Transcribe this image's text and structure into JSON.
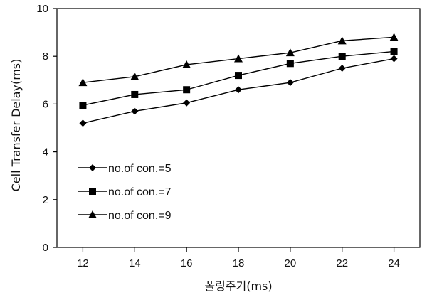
{
  "chart_data": {
    "type": "line",
    "title": "",
    "xlabel": "폴링주기(ms)",
    "ylabel": "Cell Transfer Delay(ms)",
    "x": [
      12,
      14,
      16,
      18,
      20,
      22,
      24
    ],
    "xlim": [
      11,
      25
    ],
    "ylim": [
      0,
      10
    ],
    "yticks": [
      0,
      2,
      4,
      6,
      8,
      10
    ],
    "grid": false,
    "legend_position": "left-middle",
    "series": [
      {
        "name": "no.of con.=5",
        "marker": "diamond",
        "values": [
          5.2,
          5.7,
          6.05,
          6.6,
          6.9,
          7.5,
          7.9
        ]
      },
      {
        "name": "no.of con.=7",
        "marker": "square",
        "values": [
          5.95,
          6.4,
          6.6,
          7.2,
          7.7,
          8.0,
          8.2
        ]
      },
      {
        "name": "no.of con.=9",
        "marker": "triangle",
        "values": [
          6.9,
          7.15,
          7.65,
          7.9,
          8.15,
          8.65,
          8.8
        ]
      }
    ],
    "colors": {
      "line": "#000000",
      "marker": "#000000"
    }
  }
}
